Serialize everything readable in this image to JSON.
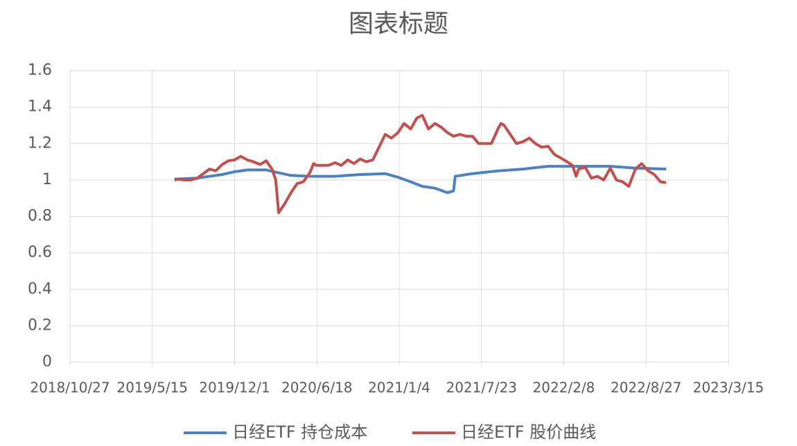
{
  "chart_data": {
    "type": "line",
    "title": "图表标题",
    "xlim": [
      "2018/10/27",
      "2023/3/15"
    ],
    "xticks": [
      "2018/10/27",
      "2019/5/15",
      "2019/12/1",
      "2020/6/18",
      "2021/1/4",
      "2021/7/23",
      "2022/2/8",
      "2022/8/27",
      "2023/3/15"
    ],
    "ylim": [
      0,
      1.6
    ],
    "yticks": [
      0,
      0.2,
      0.4,
      0.6,
      0.8,
      1,
      1.2,
      1.4,
      1.6
    ],
    "grid": true,
    "legend": "bottom",
    "series": [
      {
        "name": "日经ETF 持仓成本",
        "color": "#4f81bd",
        "x": [
          "2019/7/8",
          "2019/9/1",
          "2019/10/1",
          "2019/11/1",
          "2019/12/1",
          "2020/1/1",
          "2020/2/16",
          "2020/3/16",
          "2020/4/16",
          "2020/6/1",
          "2020/8/1",
          "2020/10/1",
          "2020/12/1",
          "2021/1/1",
          "2021/2/1",
          "2021/3/1",
          "2021/4/1",
          "2021/5/1",
          "2021/5/16",
          "2021/5/20",
          "2021/7/1",
          "2021/9/1",
          "2021/11/1",
          "2022/1/1",
          "2022/3/1",
          "2022/6/1",
          "2022/8/1",
          "2022/10/15"
        ],
        "values": [
          1.005,
          1.01,
          1.02,
          1.03,
          1.045,
          1.055,
          1.055,
          1.04,
          1.025,
          1.02,
          1.02,
          1.03,
          1.035,
          1.015,
          0.99,
          0.965,
          0.955,
          0.93,
          0.94,
          1.02,
          1.035,
          1.05,
          1.06,
          1.075,
          1.075,
          1.075,
          1.065,
          1.06
        ]
      },
      {
        "name": "日经ETF 股价曲线",
        "color": "#c0504d",
        "x": [
          "2019/7/8",
          "2019/7/16",
          "2019/8/1",
          "2019/8/16",
          "2019/9/1",
          "2019/9/16",
          "2019/10/1",
          "2019/10/16",
          "2019/11/1",
          "2019/11/16",
          "2019/12/1",
          "2019/12/16",
          "2020/1/1",
          "2020/1/16",
          "2020/2/1",
          "2020/2/16",
          "2020/3/1",
          "2020/3/10",
          "2020/3/17",
          "2020/4/1",
          "2020/4/16",
          "2020/5/1",
          "2020/5/16",
          "2020/6/1",
          "2020/6/10",
          "2020/6/16",
          "2020/7/1",
          "2020/7/16",
          "2020/8/1",
          "2020/8/16",
          "2020/9/1",
          "2020/9/16",
          "2020/10/1",
          "2020/10/16",
          "2020/11/1",
          "2020/11/16",
          "2020/12/1",
          "2020/12/16",
          "2021/1/1",
          "2021/1/16",
          "2021/2/1",
          "2021/2/16",
          "2021/3/1",
          "2021/3/16",
          "2021/4/1",
          "2021/4/16",
          "2021/5/1",
          "2021/5/16",
          "2021/6/1",
          "2021/6/16",
          "2021/7/1",
          "2021/7/16",
          "2021/8/1",
          "2021/8/16",
          "2021/9/1",
          "2021/9/8",
          "2021/9/16",
          "2021/10/1",
          "2021/10/16",
          "2021/11/1",
          "2021/11/16",
          "2021/12/1",
          "2021/12/16",
          "2022/1/1",
          "2022/1/16",
          "2022/2/1",
          "2022/2/16",
          "2022/3/1",
          "2022/3/10",
          "2022/3/16",
          "2022/4/1",
          "2022/4/16",
          "2022/5/1",
          "2022/5/16",
          "2022/6/1",
          "2022/6/16",
          "2022/7/1",
          "2022/7/16",
          "2022/8/1",
          "2022/8/16",
          "2022/9/1",
          "2022/9/16",
          "2022/10/1",
          "2022/10/15"
        ],
        "values": [
          1.0,
          1.005,
          1.0,
          1.0,
          1.01,
          1.035,
          1.06,
          1.05,
          1.085,
          1.105,
          1.11,
          1.13,
          1.11,
          1.1,
          1.085,
          1.105,
          1.06,
          1.0,
          0.82,
          0.87,
          0.93,
          0.98,
          0.99,
          1.04,
          1.09,
          1.08,
          1.08,
          1.08,
          1.095,
          1.08,
          1.11,
          1.09,
          1.115,
          1.1,
          1.11,
          1.18,
          1.25,
          1.23,
          1.26,
          1.31,
          1.28,
          1.34,
          1.355,
          1.28,
          1.31,
          1.29,
          1.26,
          1.24,
          1.25,
          1.24,
          1.24,
          1.2,
          1.2,
          1.2,
          1.28,
          1.31,
          1.3,
          1.25,
          1.2,
          1.21,
          1.23,
          1.2,
          1.18,
          1.185,
          1.14,
          1.12,
          1.1,
          1.08,
          1.02,
          1.06,
          1.07,
          1.01,
          1.02,
          1.0,
          1.065,
          1.0,
          0.99,
          0.965,
          1.06,
          1.09,
          1.05,
          1.03,
          0.99,
          0.985
        ]
      }
    ]
  }
}
